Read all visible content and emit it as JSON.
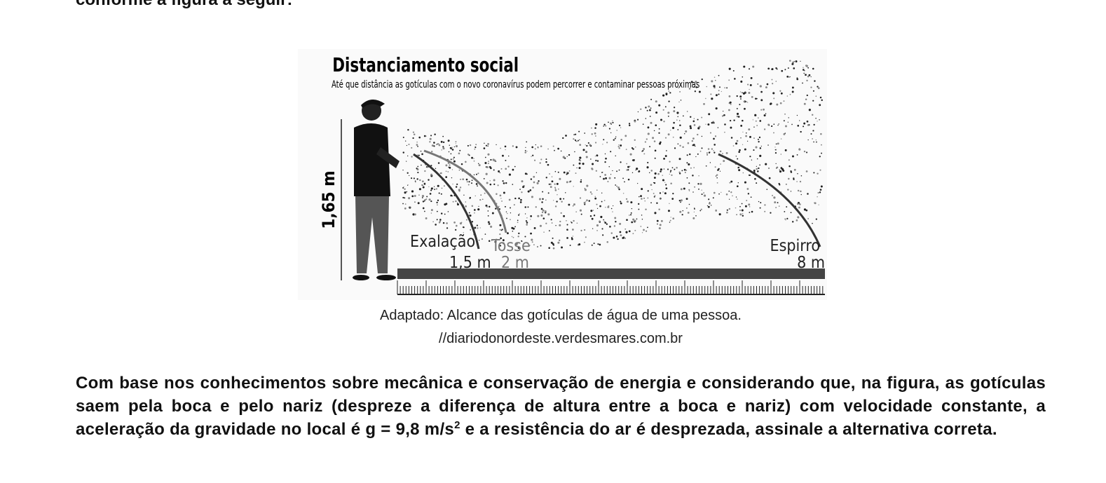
{
  "intro": {
    "text": "conforme a figura a seguir:"
  },
  "figure": {
    "title": "Distanciamento social",
    "subtitle": "Até que distância as gotículas com o novo coronavírus podem percorrer e contaminar pessoas próximas",
    "height_label": "1,65 m",
    "exhalation": {
      "label": "Exalação",
      "distance": "1,5 m"
    },
    "cough": {
      "label": "Tosse",
      "distance": "2 m"
    },
    "sneeze": {
      "label": "Espirro",
      "distance": "8 m"
    }
  },
  "caption": {
    "line1": "Adaptado: Alcance das gotículas de água de uma pessoa.",
    "line2": "//diariodonordeste.verdesmares.com.br"
  },
  "question": {
    "text_before": "Com base nos conhecimentos sobre mecânica e conservação de energia e considerando que, na figura, as gotículas saem pela boca e pelo nariz (despreze a diferença de altura entre a boca e nariz) com velocidade constante, a aceleração da gravidade no local é g = 9,8 m/s",
    "superscript": "2",
    "text_after": " e a resistência do ar é desprezada, assinale a alternativa correta."
  }
}
